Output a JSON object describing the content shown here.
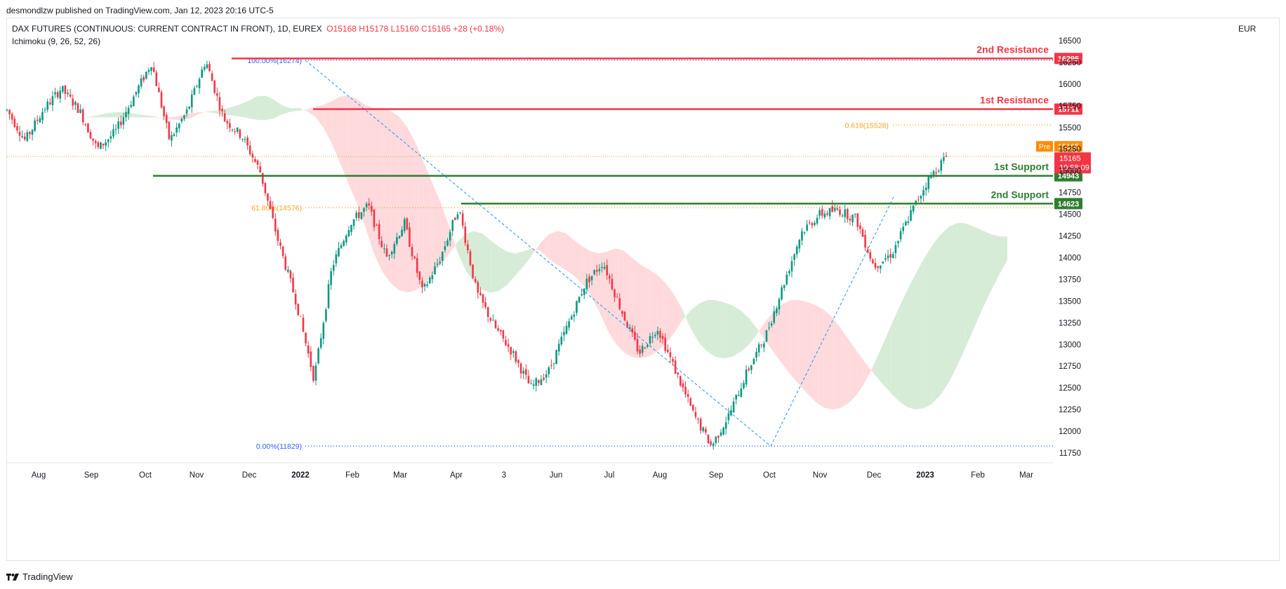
{
  "header": {
    "published_by": "desmondlzw published on TradingView.com, Jan 12, 2023 20:16 UTC-5"
  },
  "legend": {
    "symbol": "DAX FUTURES (CONTINUOUS: CURRENT CONTRACT IN FRONT), 1D, EUREX",
    "ohlc": "O15168  H15178  L15160  C15165  +28 (+0.18%)",
    "indicator": "Ichimoku (9, 26, 52, 26)"
  },
  "axis": {
    "currency": "EUR"
  },
  "brand": {
    "label": "TradingView"
  },
  "colors": {
    "up": "#089981",
    "down": "#f23645",
    "resistance": "#f23645",
    "support": "#2e7d32",
    "fib": "#f5a623",
    "fib_blue": "#2962ff",
    "cloud_green": "#c8e6c9",
    "cloud_red": "#ffcdd2",
    "pre_tag": "#fb8c00"
  },
  "chart_data": {
    "type": "line",
    "title": "",
    "y_ticks": [
      16500,
      16250,
      16000,
      15750,
      15500,
      15250,
      15000,
      14750,
      14500,
      14250,
      14000,
      13750,
      13500,
      13250,
      13000,
      12750,
      12500,
      12250,
      12000,
      11750
    ],
    "ylim": [
      11700,
      16560
    ],
    "x_ticks": [
      "Aug",
      "Sep",
      "Oct",
      "Nov",
      "Dec",
      "2022",
      "Feb",
      "Mar",
      "Apr",
      "3",
      "Jun",
      "Jul",
      "Aug",
      "Sep",
      "Oct",
      "Nov",
      "Dec",
      "2023",
      "Feb",
      "Mar"
    ],
    "price_path": [
      {
        "x": 0,
        "y": 15700
      },
      {
        "x": 1,
        "y": 15350
      },
      {
        "x": 2,
        "y": 15700
      },
      {
        "x": 3,
        "y": 15950
      },
      {
        "x": 4,
        "y": 15700
      },
      {
        "x": 5,
        "y": 15250
      },
      {
        "x": 6,
        "y": 15450
      },
      {
        "x": 7,
        "y": 15850
      },
      {
        "x": 8,
        "y": 16250
      },
      {
        "x": 9,
        "y": 15350
      },
      {
        "x": 10,
        "y": 15700
      },
      {
        "x": 11,
        "y": 16274
      },
      {
        "x": 12,
        "y": 15600
      },
      {
        "x": 13,
        "y": 15400
      },
      {
        "x": 14,
        "y": 15000
      },
      {
        "x": 15,
        "y": 14200
      },
      {
        "x": 16,
        "y": 13500
      },
      {
        "x": 17,
        "y": 12600
      },
      {
        "x": 18,
        "y": 13900
      },
      {
        "x": 19,
        "y": 14400
      },
      {
        "x": 20,
        "y": 14600
      },
      {
        "x": 21,
        "y": 14000
      },
      {
        "x": 22,
        "y": 14400
      },
      {
        "x": 23,
        "y": 13600
      },
      {
        "x": 24,
        "y": 14000
      },
      {
        "x": 25,
        "y": 14580
      },
      {
        "x": 26,
        "y": 13600
      },
      {
        "x": 27,
        "y": 13200
      },
      {
        "x": 28,
        "y": 12900
      },
      {
        "x": 29,
        "y": 12500
      },
      {
        "x": 30,
        "y": 12700
      },
      {
        "x": 31,
        "y": 13200
      },
      {
        "x": 32,
        "y": 13700
      },
      {
        "x": 33,
        "y": 13950
      },
      {
        "x": 34,
        "y": 13400
      },
      {
        "x": 35,
        "y": 12900
      },
      {
        "x": 36,
        "y": 13200
      },
      {
        "x": 37,
        "y": 12700
      },
      {
        "x": 38,
        "y": 12200
      },
      {
        "x": 39,
        "y": 11829
      },
      {
        "x": 40,
        "y": 12200
      },
      {
        "x": 41,
        "y": 12700
      },
      {
        "x": 42,
        "y": 13100
      },
      {
        "x": 43,
        "y": 13700
      },
      {
        "x": 44,
        "y": 14300
      },
      {
        "x": 45,
        "y": 14500
      },
      {
        "x": 46,
        "y": 14550
      },
      {
        "x": 47,
        "y": 14450
      },
      {
        "x": 48,
        "y": 13900
      },
      {
        "x": 49,
        "y": 14050
      },
      {
        "x": 50,
        "y": 14500
      },
      {
        "x": 51,
        "y": 14900
      },
      {
        "x": 52,
        "y": 15165
      }
    ],
    "levels": [
      {
        "label": "2nd Resistance",
        "value": 16295,
        "tag": "16295",
        "kind": "resistance"
      },
      {
        "label": "1st Resistance",
        "value": 15711,
        "tag": "15711",
        "kind": "resistance"
      },
      {
        "label": "1st Support",
        "value": 14943,
        "tag": "14943",
        "kind": "support"
      },
      {
        "label": "2nd Support",
        "value": 14623,
        "tag": "14623",
        "kind": "support"
      }
    ],
    "fib_labels": [
      {
        "text": "100.00%(16274)",
        "value": 16274
      },
      {
        "text": "61.80%(14576)",
        "value": 14576
      },
      {
        "text": "0.00%(11829)",
        "value": 11829
      },
      {
        "text": "0.618(15528)",
        "value": 15528
      }
    ],
    "current_price": {
      "value": 15165,
      "label": "15165",
      "countdown": "19:58:09",
      "pre_label": "Pre",
      "pre_value": "15165"
    }
  }
}
